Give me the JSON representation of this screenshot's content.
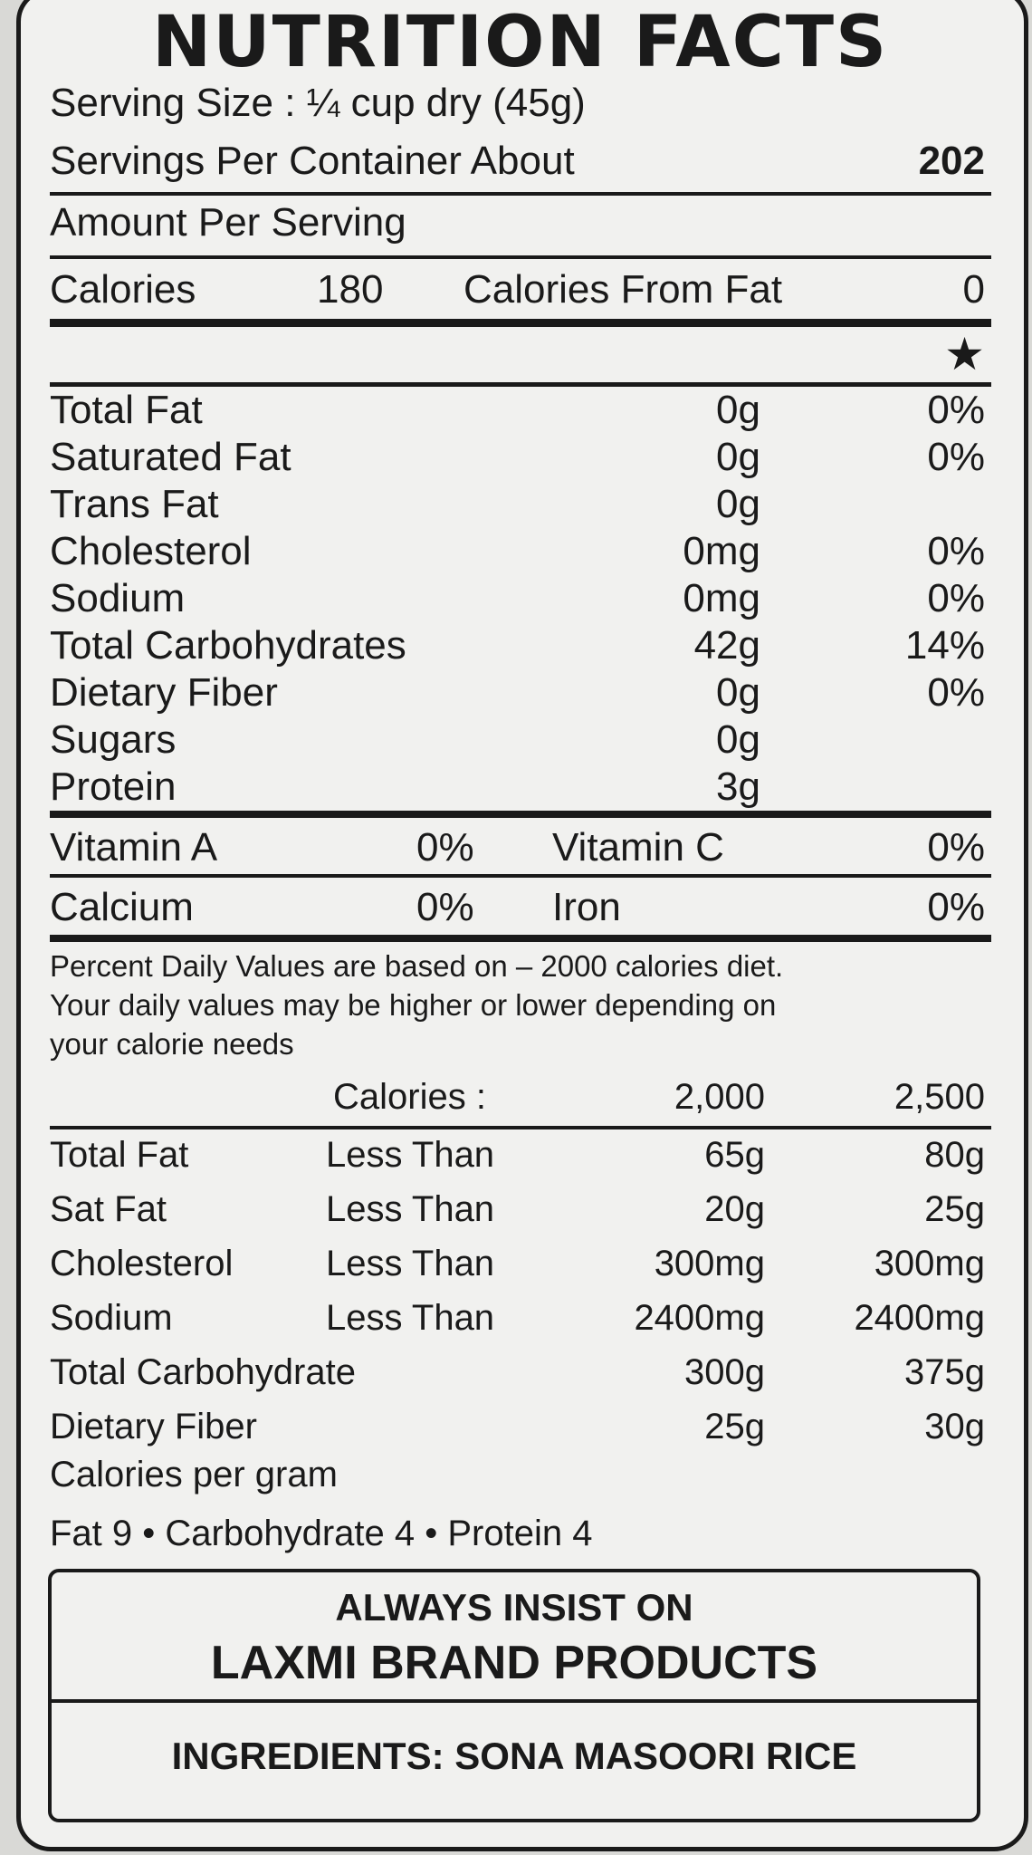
{
  "title": "NUTRITION FACTS",
  "serving_size": "Serving Size : ¼ cup dry (45g)",
  "servings_label": "Servings Per Container About",
  "servings_value": "202",
  "amount_per_serving": "Amount Per Serving",
  "calories_label": "Calories",
  "calories_value": "180",
  "calories_fat_label": "Calories From Fat",
  "calories_fat_value": "0",
  "dv_marker": "★",
  "nutrients": [
    {
      "name": "Total Fat",
      "amount": "0g",
      "dv": "0%"
    },
    {
      "name": "Saturated Fat",
      "amount": "0g",
      "dv": "0%"
    },
    {
      "name": "Trans Fat",
      "amount": "0g",
      "dv": ""
    },
    {
      "name": "Cholesterol",
      "amount": "0mg",
      "dv": "0%"
    },
    {
      "name": "Sodium",
      "amount": "0mg",
      "dv": "0%"
    },
    {
      "name": "Total Carbohydrates",
      "amount": "42g",
      "dv": "14%"
    },
    {
      "name": "Dietary Fiber",
      "amount": "0g",
      "dv": "0%"
    },
    {
      "name": "Sugars",
      "amount": "0g",
      "dv": ""
    },
    {
      "name": "Protein",
      "amount": "3g",
      "dv": ""
    }
  ],
  "vitamins": [
    {
      "name1": "Vitamin A",
      "val1": "0%",
      "name2": "Vitamin C",
      "val2": "0%"
    },
    {
      "name1": "Calcium",
      "val1": "0%",
      "name2": "Iron",
      "val2": "0%"
    }
  ],
  "footnote_lines": [
    "Percent Daily Values are based on – 2000 calories diet.",
    "Your daily values may be higher or lower depending on",
    "your calorie needs"
  ],
  "dv_table": {
    "header_label": "Calories :",
    "header_col1": "2,000",
    "header_col2": "2,500",
    "rows": [
      {
        "name": "Total Fat",
        "qual": "Less Than",
        "c1": "65g",
        "c2": "80g"
      },
      {
        "name": "Sat Fat",
        "qual": "Less Than",
        "c1": "20g",
        "c2": "25g"
      },
      {
        "name": "Cholesterol",
        "qual": "Less Than",
        "c1": "300mg",
        "c2": "300mg"
      },
      {
        "name": "Sodium",
        "qual": "Less Than",
        "c1": "2400mg",
        "c2": "2400mg"
      },
      {
        "name": "Total Carbohydrate",
        "qual": "",
        "c1": "300g",
        "c2": "375g"
      },
      {
        "name": "Dietary Fiber",
        "qual": "",
        "c1": "25g",
        "c2": "30g"
      }
    ]
  },
  "calories_per_gram": "Calories per gram",
  "cal_per_gram_detail": "Fat 9 • Carbohydrate 4 • Protein 4",
  "insist_line1": "ALWAYS INSIST ON",
  "insist_line2": "LAXMI BRAND PRODUCTS",
  "ingredients": "INGREDIENTS: SONA MASOORI RICE"
}
